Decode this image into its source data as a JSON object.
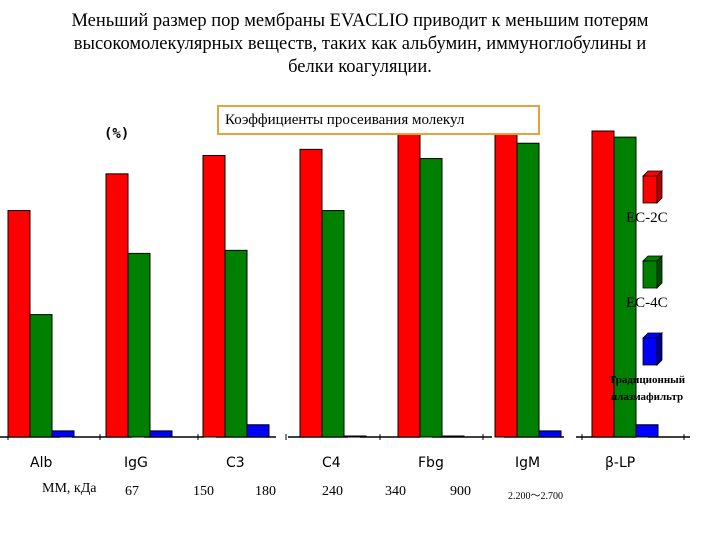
{
  "title_lines": [
    "Меньший размер пор мембраны EVACLIO приводит к меньшим потерям",
    "высокомолекулярных веществ, таких как альбумин, иммуноглобулины и",
    "белки коагуляции."
  ],
  "box_label": "Коэффициенты просеивания молекул",
  "unit_label": "(%)",
  "mw_label": "ММ, кДа",
  "mw_values": [
    "67",
    "150",
    "180",
    "240",
    "340",
    "900",
    "2.200～2.700"
  ],
  "legend": [
    {
      "name": "EC-2C",
      "color": "#ff0000",
      "dark": "#b00000"
    },
    {
      "name": "EC-4C",
      "color": "#008000",
      "dark": "#004d00"
    },
    {
      "name": "Традиционный плазмафильтр",
      "name_line1": "Традиционный",
      "name_line2": "плазмафильтр",
      "color": "#0000ff",
      "dark": "#00008a"
    }
  ],
  "chart_data": {
    "type": "bar",
    "title": "Коэффициенты просеивания молекул",
    "ylabel": "(%)",
    "ylim": [
      0,
      100
    ],
    "categories": [
      "Alb",
      "IgG",
      "C3",
      "C4",
      "Fbg",
      "IgM",
      "β-LP"
    ],
    "series": [
      {
        "name": "EC-2C",
        "values": [
          74,
          86,
          92,
          94,
          100,
          100,
          100
        ]
      },
      {
        "name": "EC-4C",
        "values": [
          40,
          60,
          61,
          74,
          91,
          96,
          98
        ]
      },
      {
        "name": "Традиционный плазмафильтр",
        "values": [
          2,
          2,
          4,
          0,
          0,
          2,
          4
        ]
      }
    ]
  }
}
